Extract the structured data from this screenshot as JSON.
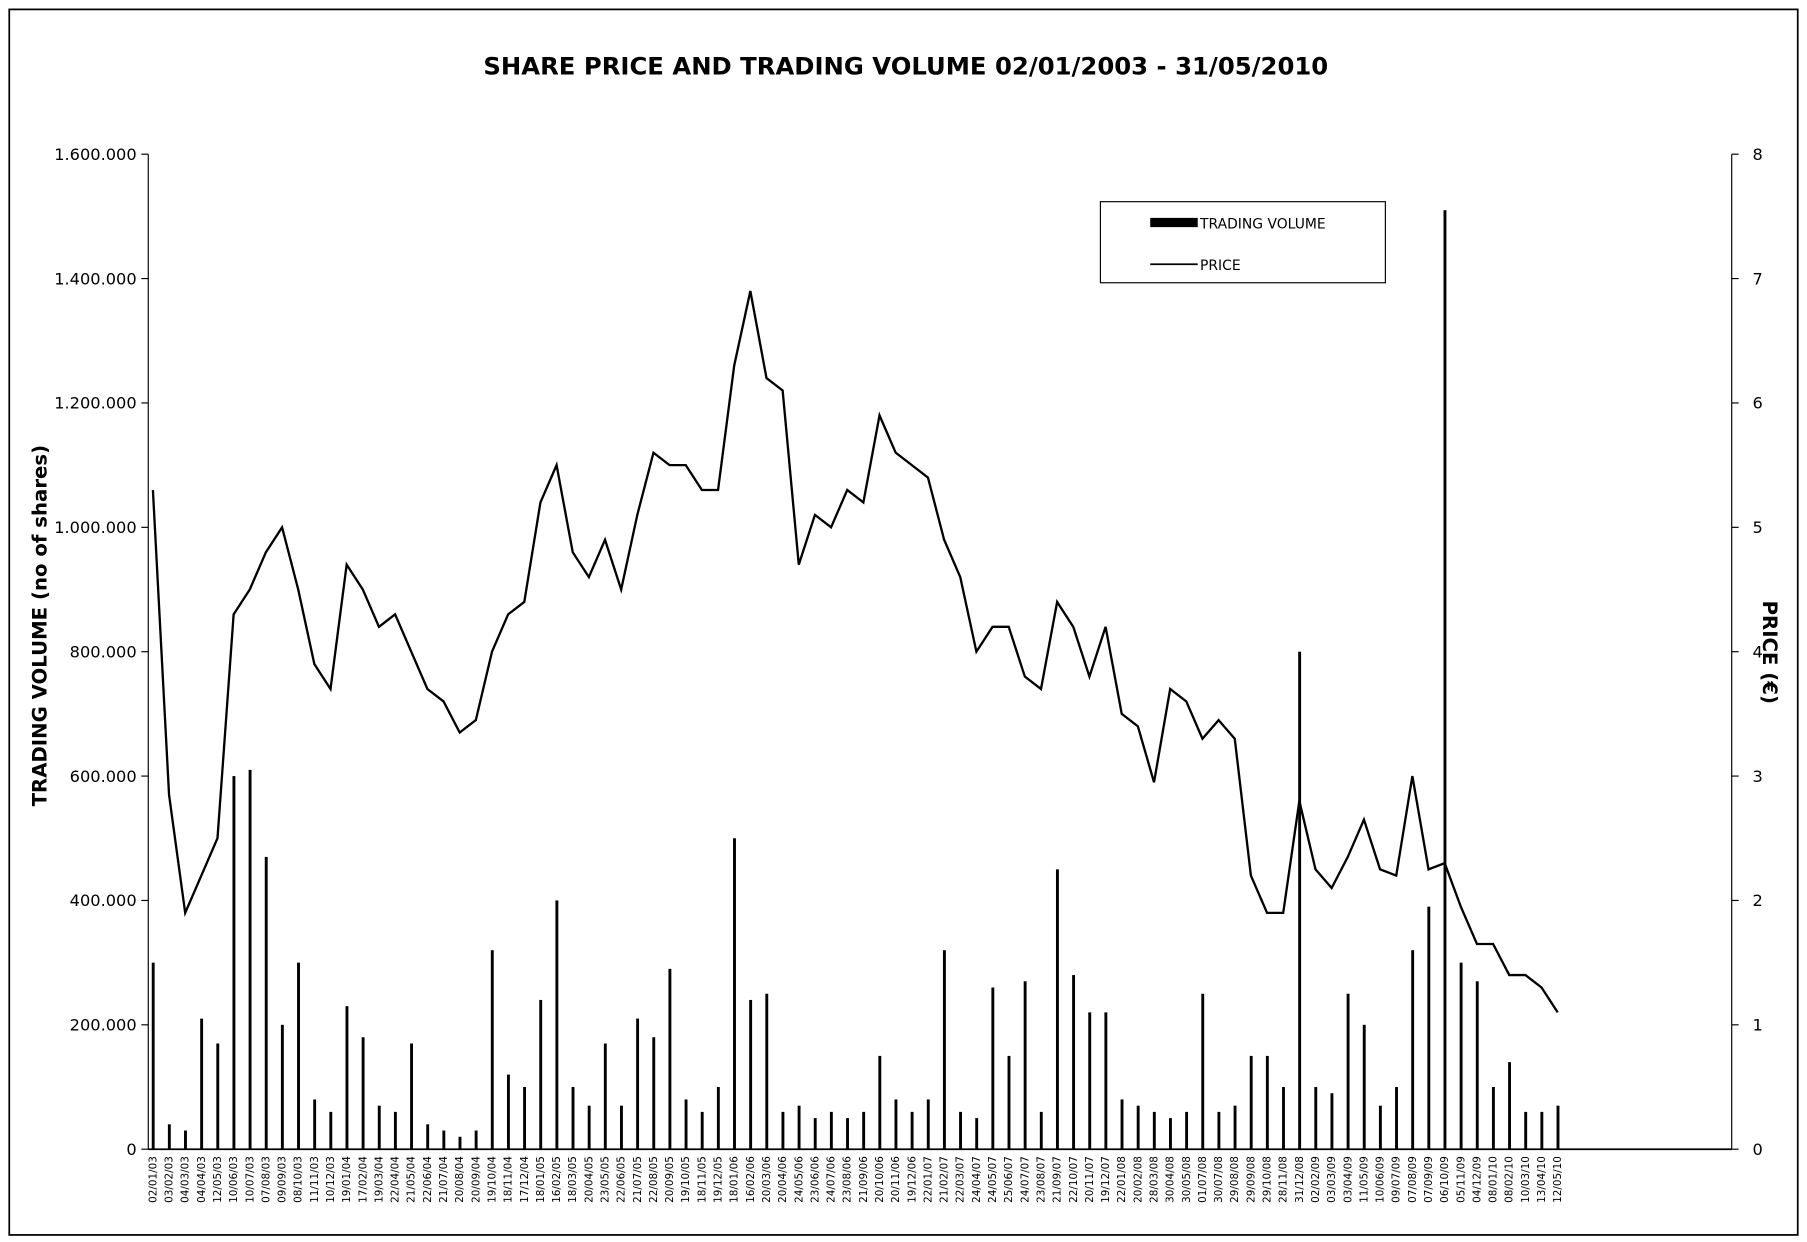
{
  "chart_data": {
    "type": "bar-line",
    "title": "SHARE PRICE AND TRADING VOLUME  02/01/2003 - 31/05/2010",
    "y_label": "TRADING VOLUME (no of shares)",
    "y2_label": "PRICE (€)",
    "categories": [
      "02/01/03",
      "03/02/03",
      "04/03/03",
      "04/04/03",
      "12/05/03",
      "10/06/03",
      "10/07/03",
      "07/08/03",
      "09/09/03",
      "08/10/03",
      "11/11/03",
      "10/12/03",
      "19/01/04",
      "17/02/04",
      "19/03/04",
      "22/04/04",
      "21/05/04",
      "22/06/04",
      "21/07/04",
      "20/08/04",
      "20/09/04",
      "19/10/04",
      "18/11/04",
      "17/12/04",
      "18/01/05",
      "16/02/05",
      "18/03/05",
      "20/04/05",
      "23/05/05",
      "22/06/05",
      "21/07/05",
      "22/08/05",
      "20/09/05",
      "19/10/05",
      "18/11/05",
      "19/12/05",
      "18/01/06",
      "16/02/06",
      "20/03/06",
      "20/04/06",
      "24/05/06",
      "23/06/06",
      "24/07/06",
      "23/08/06",
      "21/09/06",
      "20/10/06",
      "20/11/06",
      "19/12/06",
      "22/01/07",
      "21/02/07",
      "22/03/07",
      "24/04/07",
      "24/05/07",
      "25/06/07",
      "24/07/07",
      "23/08/07",
      "21/09/07",
      "22/10/07",
      "20/11/07",
      "19/12/07",
      "22/01/08",
      "20/02/08",
      "28/03/08",
      "30/04/08",
      "30/05/08",
      "01/07/08",
      "30/07/08",
      "29/08/08",
      "29/09/08",
      "29/10/08",
      "28/11/08",
      "31/12/08",
      "02/02/09",
      "03/03/09",
      "03/04/09",
      "11/05/09",
      "10/06/09",
      "09/07/09",
      "07/08/09",
      "07/09/09",
      "06/10/09",
      "05/11/09",
      "04/12/09",
      "08/01/10",
      "08/02/10",
      "10/03/10",
      "13/04/10",
      "12/05/10",
      null,
      null,
      null,
      null,
      null,
      null,
      null,
      null,
      null,
      null
    ],
    "series": [
      {
        "name": "TRADING VOLUME",
        "color": "#000000",
        "axis": "y",
        "values": [
          300000,
          40000,
          30000,
          210000,
          170000,
          600000,
          610000,
          470000,
          200000,
          300000,
          80000,
          60000,
          230000,
          180000,
          70000,
          60000,
          170000,
          40000,
          30000,
          20000,
          30000,
          320000,
          120000,
          100000,
          240000,
          400000,
          100000,
          70000,
          170000,
          70000,
          210000,
          180000,
          290000,
          80000,
          60000,
          100000,
          500000,
          240000,
          250000,
          60000,
          70000,
          50000,
          60000,
          50000,
          60000,
          150000,
          80000,
          60000,
          80000,
          320000,
          60000,
          50000,
          260000,
          150000,
          270000,
          60000,
          450000,
          280000,
          220000,
          220000,
          80000,
          70000,
          60000,
          50000,
          60000,
          250000,
          60000,
          70000,
          150000,
          150000,
          100000,
          800000,
          100000,
          90000,
          250000,
          200000,
          70000,
          100000,
          320000,
          390000,
          1510000,
          300000,
          270000,
          100000,
          140000,
          60000,
          60000,
          70000,
          null,
          null,
          null,
          null,
          null,
          null,
          null,
          null,
          null,
          null
        ]
      },
      {
        "name": "PRICE",
        "color": "#000000",
        "axis": "y2",
        "values": [
          5.3,
          2.85,
          1.9,
          2.2,
          2.5,
          4.3,
          4.5,
          4.8,
          5.0,
          4.5,
          3.9,
          3.7,
          4.7,
          4.5,
          4.2,
          4.3,
          4.0,
          3.7,
          3.6,
          3.35,
          3.45,
          4.0,
          4.3,
          4.4,
          5.2,
          5.5,
          4.8,
          4.6,
          4.9,
          4.5,
          5.1,
          5.6,
          5.5,
          5.5,
          5.3,
          5.3,
          6.3,
          6.9,
          6.2,
          6.1,
          4.7,
          5.1,
          5.0,
          5.3,
          5.2,
          5.9,
          5.6,
          5.5,
          5.4,
          4.9,
          4.6,
          4.0,
          4.2,
          4.2,
          3.8,
          3.7,
          4.4,
          4.2,
          3.8,
          4.2,
          3.5,
          3.4,
          2.95,
          3.7,
          3.6,
          3.3,
          3.45,
          3.3,
          2.2,
          1.9,
          1.9,
          2.8,
          2.25,
          2.1,
          2.35,
          2.65,
          2.25,
          2.2,
          3.0,
          2.25,
          2.3,
          1.95,
          1.65,
          1.65,
          1.4,
          1.4,
          1.3,
          1.1,
          null,
          null,
          null,
          null,
          null,
          null,
          null,
          null,
          null,
          null
        ]
      }
    ],
    "ylim": [
      0,
      1600000
    ],
    "yticks": [
      0,
      {
        "value": 200000,
        "label": "200.000"
      },
      {
        "value": 400000,
        "label": "400.000"
      },
      {
        "value": 600000,
        "label": "600.000"
      },
      {
        "value": 800000,
        "label": "800.000"
      },
      {
        "value": 1000000,
        "label": "1.000.000"
      },
      {
        "value": 1200000,
        "label": "1.200.000"
      },
      {
        "value": 1400000,
        "label": "1.400.000"
      },
      {
        "value": 1600000,
        "label": "1.600.000"
      }
    ],
    "y2lim": [
      0,
      8
    ],
    "y2ticks": [
      0,
      1,
      2,
      3,
      4,
      5,
      6,
      7,
      8
    ],
    "grid": false,
    "legend": "top-right"
  }
}
